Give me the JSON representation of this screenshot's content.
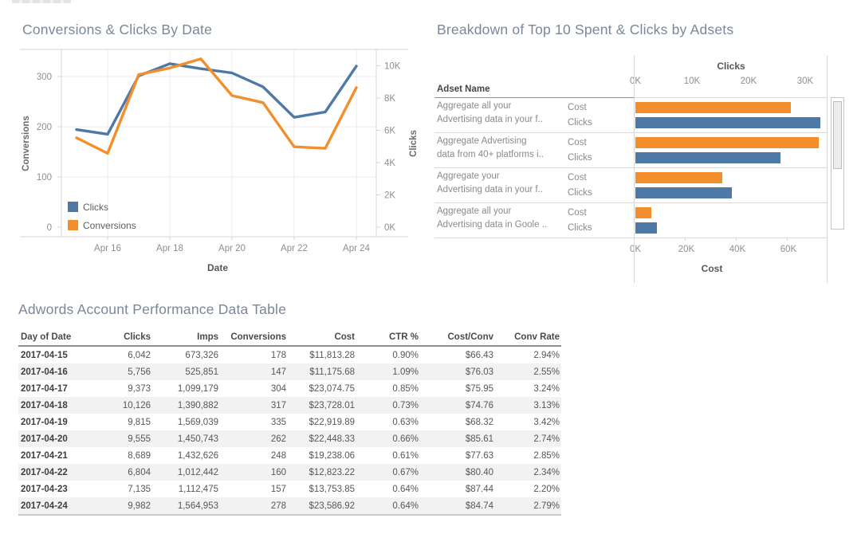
{
  "colors": {
    "series_blue": "#4e79a7",
    "series_orange": "#f28e2b",
    "title_text": "#7b8798",
    "tick_text": "#8e8e8e",
    "band_row": "#f2f2f2"
  },
  "chart_data": [
    {
      "type": "line",
      "title": "Conversions & Clicks By Date",
      "xlabel": "Date",
      "x": [
        "2017-04-15",
        "2017-04-16",
        "2017-04-17",
        "2017-04-18",
        "2017-04-19",
        "2017-04-20",
        "2017-04-21",
        "2017-04-22",
        "2017-04-23",
        "2017-04-24"
      ],
      "x_tick_labels": [
        "Apr 16",
        "Apr 18",
        "Apr 20",
        "Apr 22",
        "Apr 24"
      ],
      "left_axis": {
        "label": "Conversions",
        "ticks": [
          0,
          100,
          200,
          300
        ],
        "max": 354
      },
      "right_axis": {
        "label": "Clicks",
        "ticks": [
          "0K",
          "2K",
          "4K",
          "6K",
          "8K",
          "10K"
        ],
        "tick_values": [
          0,
          2000,
          4000,
          6000,
          8000,
          10000
        ],
        "max": 11000
      },
      "series": [
        {
          "name": "Clicks",
          "color": "#4e79a7",
          "axis": "right",
          "values": [
            6042,
            5756,
            9373,
            10126,
            9815,
            9555,
            8689,
            6804,
            7135,
            9982
          ]
        },
        {
          "name": "Conversions",
          "color": "#f28e2b",
          "axis": "left",
          "values": [
            178,
            147,
            304,
            317,
            335,
            262,
            248,
            160,
            157,
            278
          ]
        }
      ],
      "legend": [
        "Clicks",
        "Conversions"
      ],
      "legend_position": "bottom-left",
      "grid": true
    },
    {
      "type": "bar",
      "title": "Breakdown of Top 10 Spent & Clicks by Adsets",
      "row_header": "Adset Name",
      "top_axis": {
        "label": "Clicks",
        "ticks": [
          "0K",
          "10K",
          "20K",
          "30K"
        ],
        "tick_values": [
          0,
          10000,
          20000,
          30000
        ],
        "max": 33800
      },
      "bottom_axis": {
        "label": "Cost",
        "ticks": [
          "0K",
          "20K",
          "40K",
          "60K"
        ],
        "tick_values": [
          0,
          20000,
          40000,
          60000
        ],
        "max": 75000
      },
      "bar_labels": [
        "Cost",
        "Clicks"
      ],
      "bar_colors": {
        "cost": "#f28e2b",
        "clicks": "#4e79a7"
      },
      "rows": [
        {
          "name_lines": [
            "Aggregate all your",
            "Advertising data in your f.."
          ],
          "cost": 61000,
          "clicks": 32700
        },
        {
          "name_lines": [
            "Aggregate Advertising",
            "data from 40+ platforms i.."
          ],
          "cost": 72000,
          "clicks": 25600
        },
        {
          "name_lines": [
            "Aggregate your",
            "Advertising data in your f.."
          ],
          "cost": 34000,
          "clicks": 17000
        },
        {
          "name_lines": [
            "Aggregate all your",
            "Advertising data in Goole .."
          ],
          "cost": 6200,
          "clicks": 3800
        }
      ],
      "scrollbar": true
    }
  ],
  "table": {
    "title": "Adwords Account Performance Data Table",
    "columns": [
      "Day of Date",
      "Clicks",
      "Imps",
      "Conversions",
      "Cost",
      "CTR %",
      "Cost/Conv",
      "Conv Rate"
    ],
    "rows": [
      [
        "2017-04-15",
        "6,042",
        "673,326",
        "178",
        "$11,813.28",
        "0.90%",
        "$66.43",
        "2.94%"
      ],
      [
        "2017-04-16",
        "5,756",
        "525,851",
        "147",
        "$11,175.68",
        "1.09%",
        "$76.03",
        "2.55%"
      ],
      [
        "2017-04-17",
        "9,373",
        "1,099,179",
        "304",
        "$23,074.75",
        "0.85%",
        "$75.95",
        "3.24%"
      ],
      [
        "2017-04-18",
        "10,126",
        "1,390,882",
        "317",
        "$23,728.01",
        "0.73%",
        "$74.76",
        "3.13%"
      ],
      [
        "2017-04-19",
        "9,815",
        "1,569,039",
        "335",
        "$22,919.89",
        "0.63%",
        "$68.32",
        "3.42%"
      ],
      [
        "2017-04-20",
        "9,555",
        "1,450,743",
        "262",
        "$22,448.33",
        "0.66%",
        "$85.61",
        "2.74%"
      ],
      [
        "2017-04-21",
        "8,689",
        "1,432,626",
        "248",
        "$19,238.06",
        "0.61%",
        "$77.63",
        "2.85%"
      ],
      [
        "2017-04-22",
        "6,804",
        "1,012,442",
        "160",
        "$12,823.22",
        "0.67%",
        "$80.40",
        "2.34%"
      ],
      [
        "2017-04-23",
        "7,135",
        "1,112,475",
        "157",
        "$13,753.85",
        "0.64%",
        "$87.44",
        "2.20%"
      ],
      [
        "2017-04-24",
        "9,982",
        "1,564,953",
        "278",
        "$23,586.92",
        "0.64%",
        "$84.74",
        "2.79%"
      ]
    ]
  }
}
